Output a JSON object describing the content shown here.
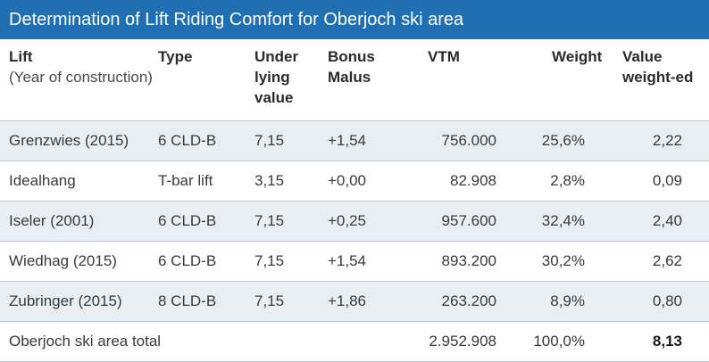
{
  "title": "Determination of Lift Riding Comfort for Oberjoch ski area",
  "headers": {
    "lift": "Lift",
    "lift_sub": "(Year of construction)",
    "type": "Type",
    "underlying": "Under lying value",
    "bonus": "Bonus Malus",
    "vtm": "VTM",
    "weight": "Weight",
    "value_weighted": "Value weight-ed"
  },
  "rows": [
    {
      "lift": "Grenzwies (2015)",
      "type": "6 CLD-B",
      "underlying": "7,15",
      "bonus": "+1,54",
      "vtm": "756.000",
      "weight": "25,6%",
      "value": "2,22"
    },
    {
      "lift": "Idealhang",
      "type": "T-bar lift",
      "underlying": "3,15",
      "bonus": "+0,00",
      "vtm": "82.908",
      "weight": "2,8%",
      "value": "0,09"
    },
    {
      "lift": "Iseler (2001)",
      "type": "6 CLD-B",
      "underlying": "7,15",
      "bonus": "+0,25",
      "vtm": "957.600",
      "weight": "32,4%",
      "value": "2,40"
    },
    {
      "lift": "Wiedhag (2015)",
      "type": "6 CLD-B",
      "underlying": "7,15",
      "bonus": "+1,54",
      "vtm": "893.200",
      "weight": "30,2%",
      "value": "2,62"
    },
    {
      "lift": "Zubringer (2015)",
      "type": "8 CLD-B",
      "underlying": "7,15",
      "bonus": "+1,86",
      "vtm": "263.200",
      "weight": "8,9%",
      "value": "0,80"
    }
  ],
  "total": {
    "label": "Oberjoch ski area total",
    "vtm": "2.952.908",
    "weight": "100,0%",
    "value": "8,13"
  },
  "colors": {
    "title_bar": "#1f6fb2",
    "row_shade": "#e9eef5",
    "rule": "#b9c6d6"
  }
}
